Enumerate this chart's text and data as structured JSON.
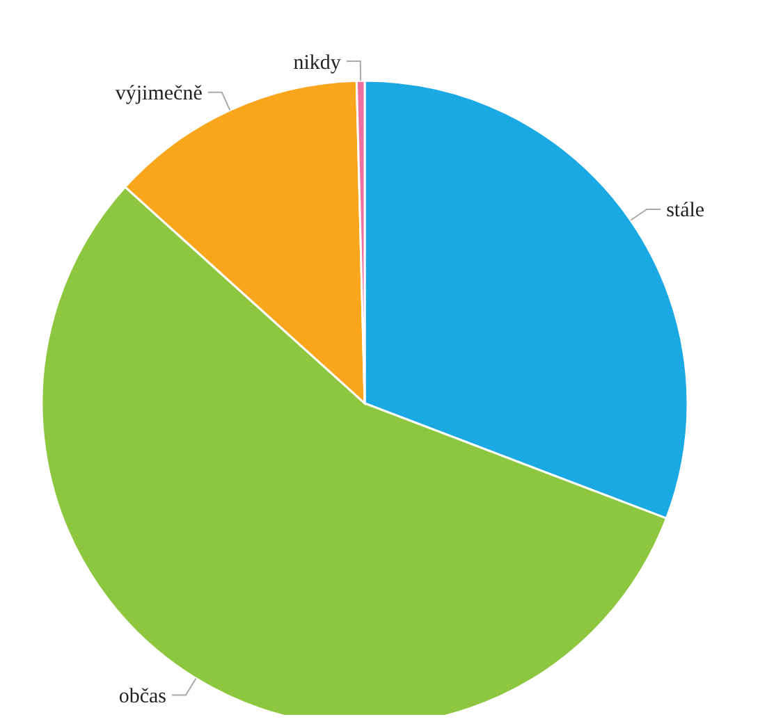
{
  "chart_data": {
    "type": "pie",
    "categories": [
      "stále",
      "občas",
      "výjimečně",
      "nikdy"
    ],
    "values": [
      30.8,
      55.9,
      12.9,
      0.4
    ],
    "colors": [
      "#1ba9e3",
      "#8dc63f",
      "#f9a61d",
      "#ef6fa0"
    ],
    "legend": false
  }
}
